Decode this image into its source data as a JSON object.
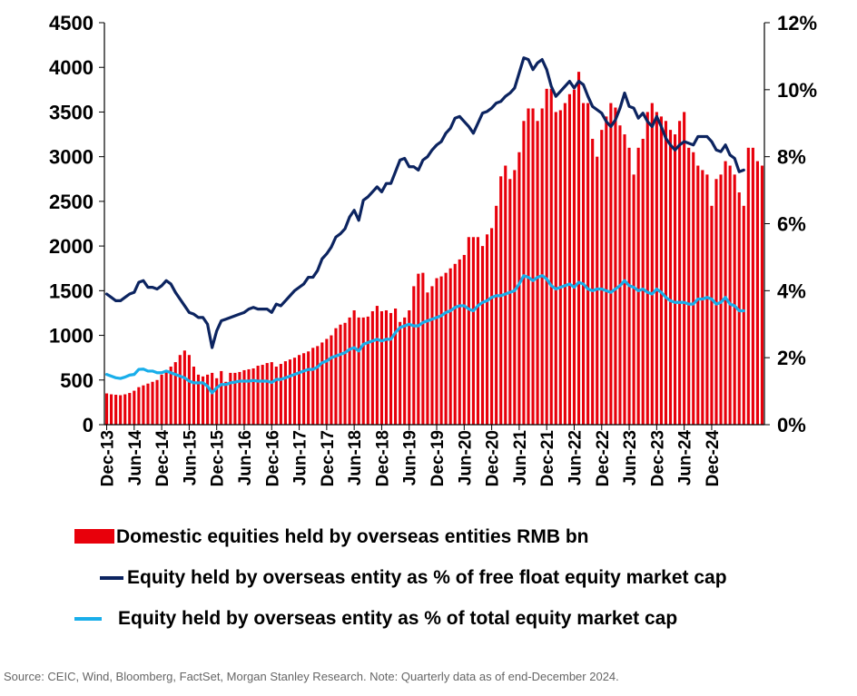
{
  "chart_data": {
    "type": "bar+line",
    "colors": {
      "bar": "#e8000b",
      "free_float_line": "#0c2460",
      "total_line": "#19aeea"
    },
    "left_axis": {
      "ticks": [
        "0",
        "500",
        "1000",
        "1500",
        "2000",
        "2500",
        "3000",
        "3500",
        "4000",
        "4500"
      ],
      "ylim": [
        0,
        4500
      ]
    },
    "right_axis": {
      "ticks": [
        "0%",
        "2%",
        "4%",
        "6%",
        "8%",
        "10%",
        "12%"
      ],
      "ylim": [
        0,
        12
      ]
    },
    "x_tick_labels": [
      "Dec-13",
      "Jun-14",
      "Dec-14",
      "Jun-15",
      "Dec-15",
      "Jun-16",
      "Dec-16",
      "Jun-17",
      "Dec-17",
      "Jun-18",
      "Dec-18",
      "Jun-19",
      "Dec-19",
      "Jun-20",
      "Dec-20",
      "Jun-21",
      "Dec-21",
      "Jun-22",
      "Dec-22",
      "Jun-23",
      "Dec-23",
      "Jun-24",
      "Dec-24"
    ],
    "x_start": "Dec-13",
    "frequency": "monthly",
    "series": [
      {
        "name": "Domestic equities held by overseas entities RMB bn",
        "type": "bar",
        "axis": "left",
        "values": [
          350,
          340,
          335,
          330,
          340,
          355,
          380,
          420,
          440,
          460,
          480,
          500,
          560,
          600,
          650,
          700,
          780,
          830,
          780,
          650,
          560,
          540,
          560,
          580,
          520,
          600,
          480,
          580,
          580,
          590,
          610,
          620,
          630,
          660,
          670,
          690,
          700,
          650,
          680,
          710,
          730,
          750,
          780,
          800,
          820,
          860,
          880,
          920,
          960,
          1000,
          1080,
          1120,
          1140,
          1200,
          1280,
          1200,
          1200,
          1210,
          1270,
          1330,
          1270,
          1280,
          1250,
          1300,
          1150,
          1200,
          1280,
          1550,
          1690,
          1700,
          1480,
          1550,
          1640,
          1660,
          1700,
          1750,
          1800,
          1850,
          1900,
          2100,
          2100,
          2100,
          2000,
          2130,
          2200,
          2450,
          2780,
          2900,
          2750,
          2850,
          3050,
          3400,
          3540,
          3540,
          3400,
          3540,
          3760,
          3760,
          3500,
          3520,
          3600,
          3700,
          3750,
          3950,
          3600,
          3600,
          3200,
          3000,
          3300,
          3450,
          3600,
          3550,
          3350,
          3250,
          3100,
          2800,
          3100,
          3200,
          3500,
          3600,
          3500,
          3450,
          3400,
          3300,
          3250,
          3400,
          3500,
          3100,
          3050,
          2900,
          2850,
          2800,
          2450,
          2750,
          2800,
          2950,
          2900,
          2800,
          2600,
          2450,
          3100,
          3100,
          2950,
          2900
        ]
      },
      {
        "name": "Equity held by overseas entity as % of free float equity market cap",
        "type": "line",
        "axis": "right",
        "values": [
          3.9,
          3.8,
          3.7,
          3.7,
          3.8,
          3.9,
          3.95,
          4.25,
          4.3,
          4.1,
          4.1,
          4.05,
          4.15,
          4.3,
          4.2,
          3.95,
          3.75,
          3.55,
          3.35,
          3.3,
          3.2,
          3.2,
          3.0,
          2.3,
          2.8,
          3.1,
          3.15,
          3.2,
          3.25,
          3.3,
          3.35,
          3.45,
          3.5,
          3.45,
          3.45,
          3.45,
          3.35,
          3.6,
          3.55,
          3.7,
          3.85,
          4.0,
          4.1,
          4.2,
          4.4,
          4.4,
          4.6,
          4.95,
          5.1,
          5.3,
          5.6,
          5.7,
          5.85,
          6.2,
          6.4,
          6.1,
          6.7,
          6.8,
          6.95,
          7.1,
          6.95,
          7.2,
          7.2,
          7.55,
          7.9,
          7.95,
          7.7,
          7.7,
          7.6,
          7.9,
          8.0,
          8.2,
          8.35,
          8.45,
          8.7,
          8.85,
          9.15,
          9.2,
          9.05,
          8.9,
          8.7,
          9.0,
          9.3,
          9.35,
          9.45,
          9.6,
          9.65,
          9.8,
          9.9,
          10.05,
          10.5,
          10.95,
          10.9,
          10.6,
          10.8,
          10.9,
          10.6,
          10.1,
          9.8,
          9.95,
          10.1,
          10.25,
          10.05,
          10.25,
          10.15,
          9.8,
          9.5,
          9.4,
          9.3,
          9.05,
          8.9,
          9.1,
          9.45,
          9.9,
          9.5,
          9.45,
          9.15,
          9.3,
          9.05,
          8.9,
          9.2,
          8.9,
          8.55,
          8.35,
          8.2,
          8.35,
          8.45,
          8.4,
          8.35,
          8.6,
          8.6,
          8.6,
          8.45,
          8.2,
          8.15,
          8.35,
          8.05,
          7.95,
          7.55,
          7.6
        ]
      },
      {
        "name": "Equity held by overseas entity as % of total equity market cap",
        "type": "line",
        "axis": "right",
        "values": [
          1.5,
          1.45,
          1.4,
          1.38,
          1.42,
          1.48,
          1.5,
          1.65,
          1.66,
          1.6,
          1.6,
          1.55,
          1.55,
          1.6,
          1.55,
          1.5,
          1.45,
          1.4,
          1.3,
          1.25,
          1.25,
          1.25,
          1.15,
          0.95,
          1.1,
          1.2,
          1.2,
          1.25,
          1.27,
          1.3,
          1.3,
          1.3,
          1.32,
          1.3,
          1.3,
          1.3,
          1.26,
          1.35,
          1.35,
          1.4,
          1.45,
          1.5,
          1.55,
          1.6,
          1.65,
          1.65,
          1.72,
          1.85,
          1.9,
          2.0,
          2.05,
          2.1,
          2.15,
          2.25,
          2.3,
          2.2,
          2.4,
          2.45,
          2.5,
          2.55,
          2.5,
          2.55,
          2.55,
          2.75,
          2.9,
          2.95,
          3.0,
          2.95,
          2.95,
          3.05,
          3.1,
          3.15,
          3.2,
          3.25,
          3.35,
          3.4,
          3.5,
          3.55,
          3.55,
          3.45,
          3.4,
          3.55,
          3.65,
          3.7,
          3.8,
          3.85,
          3.85,
          3.9,
          3.95,
          4.0,
          4.2,
          4.45,
          4.4,
          4.3,
          4.4,
          4.45,
          4.35,
          4.15,
          4.05,
          4.1,
          4.15,
          4.2,
          4.1,
          4.25,
          4.2,
          4.05,
          4.0,
          4.05,
          4.05,
          4.0,
          3.95,
          4.05,
          4.15,
          4.3,
          4.15,
          4.1,
          4.0,
          4.05,
          3.95,
          3.9,
          4.05,
          3.95,
          3.8,
          3.7,
          3.65,
          3.65,
          3.65,
          3.6,
          3.6,
          3.75,
          3.75,
          3.8,
          3.75,
          3.6,
          3.65,
          3.8,
          3.6,
          3.55,
          3.4,
          3.4
        ]
      }
    ]
  },
  "legend": {
    "bar": "Domestic equities held by overseas entities RMB bn",
    "free_float": "Equity held by overseas entity as % of free float equity market cap",
    "total": "Equity held by overseas entity as % of total equity market cap"
  },
  "source": "Source: CEIC, Wind, Bloomberg, FactSet, Morgan Stanley Research. Note: Quarterly data as of end-December 2024."
}
